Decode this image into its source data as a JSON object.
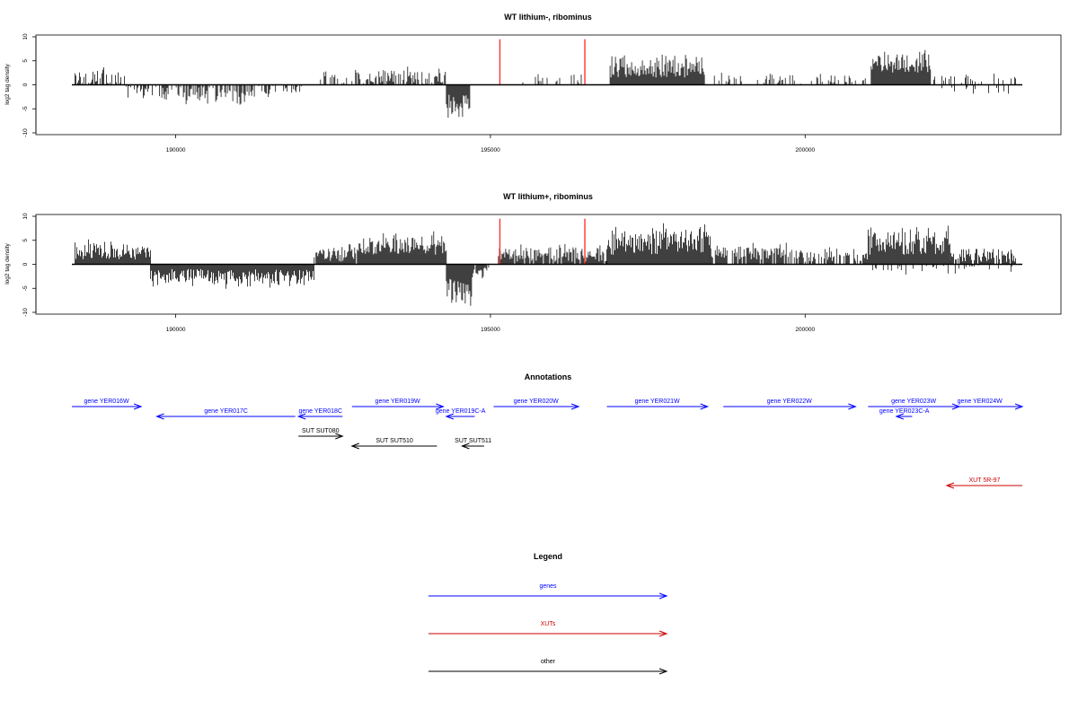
{
  "chart_data": [
    {
      "type": "bar",
      "title": "WT lithium-, ribominus",
      "ylabel": "log2 tag density",
      "xlabel": "",
      "xlim": [
        188350,
        203450
      ],
      "ylim": [
        -10,
        10
      ],
      "x_ticks": [
        190000,
        195000,
        200000
      ],
      "y_ticks": [
        10,
        5,
        0,
        -5,
        -10
      ],
      "markers": [
        195150,
        196500
      ],
      "marker_color": "#ff3333",
      "segments": [
        {
          "x": [
            188400,
            189200
          ],
          "min": 0,
          "max": 4,
          "sign": 1,
          "density": 0.55
        },
        {
          "x": [
            189200,
            189750
          ],
          "min": 0,
          "max": 3,
          "sign": -1,
          "density": 0.6
        },
        {
          "x": [
            189750,
            191300
          ],
          "min": 0.5,
          "max": 4.5,
          "sign": -1,
          "density": 0.6
        },
        {
          "x": [
            191300,
            192000
          ],
          "min": 0,
          "max": 3,
          "sign": -1,
          "density": 0.5
        },
        {
          "x": [
            192300,
            192800
          ],
          "min": 0,
          "max": 3.5,
          "sign": 1,
          "density": 0.5
        },
        {
          "x": [
            192800,
            194300
          ],
          "min": 0,
          "max": 4.5,
          "sign": 1,
          "density": 0.7
        },
        {
          "x": [
            194300,
            194680
          ],
          "min": 2,
          "max": 8,
          "sign": -1,
          "density": 1.0
        },
        {
          "x": [
            195500,
            196450
          ],
          "min": 0,
          "max": 3,
          "sign": 1,
          "density": 0.35
        },
        {
          "x": [
            196900,
            198400
          ],
          "min": 1.5,
          "max": 7,
          "sign": 1,
          "density": 1.0
        },
        {
          "x": [
            198500,
            201000
          ],
          "min": 0,
          "max": 3,
          "sign": 1,
          "density": 0.3
        },
        {
          "x": [
            201050,
            202000
          ],
          "min": 2.5,
          "max": 7.5,
          "sign": 1,
          "density": 1.0
        },
        {
          "x": [
            202000,
            203350
          ],
          "min": 0,
          "max": 3,
          "sign": 1,
          "density": 0.25
        },
        {
          "x": [
            202000,
            203350
          ],
          "min": 0,
          "max": 2.5,
          "sign": -1,
          "density": 0.15
        }
      ]
    },
    {
      "type": "bar",
      "title": "WT lithium+, ribominus",
      "ylabel": "log2 tag density",
      "xlabel": "",
      "xlim": [
        188350,
        203450
      ],
      "ylim": [
        -10,
        10
      ],
      "x_ticks": [
        190000,
        195000,
        200000
      ],
      "y_ticks": [
        10,
        5,
        0,
        -5,
        -10
      ],
      "markers": [
        195150,
        196500
      ],
      "marker_color": "#ff3333",
      "segments": [
        {
          "x": [
            188400,
            189600
          ],
          "min": 1,
          "max": 5.5,
          "sign": 1,
          "density": 1.0
        },
        {
          "x": [
            189600,
            192200
          ],
          "min": 1,
          "max": 5.5,
          "sign": -1,
          "density": 1.0
        },
        {
          "x": [
            192200,
            192900
          ],
          "min": 0.5,
          "max": 5,
          "sign": 1,
          "density": 0.9
        },
        {
          "x": [
            192900,
            194300
          ],
          "min": 2,
          "max": 7,
          "sign": 1,
          "density": 1.0
        },
        {
          "x": [
            194300,
            194700
          ],
          "min": 3,
          "max": 9.5,
          "sign": -1,
          "density": 1.0
        },
        {
          "x": [
            194700,
            195000
          ],
          "min": 0.5,
          "max": 3.5,
          "sign": -1,
          "density": 0.8
        },
        {
          "x": [
            195100,
            196850
          ],
          "min": 0.5,
          "max": 4.5,
          "sign": 1,
          "density": 0.9
        },
        {
          "x": [
            196850,
            198500
          ],
          "min": 2,
          "max": 9,
          "sign": 1,
          "density": 1.0
        },
        {
          "x": [
            198500,
            200000
          ],
          "min": 1,
          "max": 5,
          "sign": 1,
          "density": 0.8
        },
        {
          "x": [
            200000,
            201000
          ],
          "min": 0.5,
          "max": 4,
          "sign": 1,
          "density": 0.6
        },
        {
          "x": [
            201000,
            202300
          ],
          "min": 2,
          "max": 8.5,
          "sign": 1,
          "density": 1.0
        },
        {
          "x": [
            202300,
            203350
          ],
          "min": 0.5,
          "max": 4,
          "sign": 1,
          "density": 0.8
        },
        {
          "x": [
            201000,
            203350
          ],
          "min": 0,
          "max": 2.5,
          "sign": -1,
          "density": 0.2
        }
      ]
    }
  ],
  "annotations": {
    "title": "Annotations",
    "genes_color": "#0000ff",
    "xut_color": "#cc0000",
    "other_color": "#000000",
    "features": [
      {
        "label": "gene YER016W",
        "kind": "gene",
        "strand": "+",
        "start": 188350,
        "end": 189450,
        "row": 0
      },
      {
        "label": "gene YER017C",
        "kind": "gene",
        "strand": "-",
        "start": 189700,
        "end": 191900,
        "row": 1
      },
      {
        "label": "gene YER018C",
        "kind": "gene",
        "strand": "-",
        "start": 191950,
        "end": 192650,
        "row": 1
      },
      {
        "label": "gene YER019W",
        "kind": "gene",
        "strand": "+",
        "start": 192800,
        "end": 194250,
        "row": 0
      },
      {
        "label": "gene YER019C-A",
        "kind": "gene",
        "strand": "-",
        "start": 194300,
        "end": 194750,
        "row": 1
      },
      {
        "label": "gene YER020W",
        "kind": "gene",
        "strand": "+",
        "start": 195050,
        "end": 196400,
        "row": 0
      },
      {
        "label": "gene YER021W",
        "kind": "gene",
        "strand": "+",
        "start": 196850,
        "end": 198450,
        "row": 0
      },
      {
        "label": "gene YER022W",
        "kind": "gene",
        "strand": "+",
        "start": 198700,
        "end": 200800,
        "row": 0
      },
      {
        "label": "gene YER023W",
        "kind": "gene",
        "strand": "+",
        "start": 201000,
        "end": 202450,
        "row": 0
      },
      {
        "label": "gene YER023C-A",
        "kind": "gene",
        "strand": "-",
        "start": 201450,
        "end": 201700,
        "row": 1
      },
      {
        "label": "gene YER024W",
        "kind": "gene",
        "strand": "+",
        "start": 202100,
        "end": 203450,
        "row": 0
      },
      {
        "label": "SUT SUT080",
        "kind": "other",
        "strand": "+",
        "start": 191950,
        "end": 192650,
        "row": 3
      },
      {
        "label": "SUT SUT510",
        "kind": "other",
        "strand": "-",
        "start": 192800,
        "end": 194150,
        "row": 4
      },
      {
        "label": "SUT SUT511",
        "kind": "other",
        "strand": "-",
        "start": 194550,
        "end": 194900,
        "row": 4
      },
      {
        "label": "XUT 5R-97",
        "kind": "xut",
        "strand": "-",
        "start": 202250,
        "end": 203450,
        "row": 8
      }
    ]
  },
  "legend": {
    "title": "Legend",
    "items": [
      {
        "label": "genes",
        "color": "#0000ff"
      },
      {
        "label": "XUTs",
        "color": "#cc0000"
      },
      {
        "label": "other",
        "color": "#000000"
      }
    ]
  }
}
